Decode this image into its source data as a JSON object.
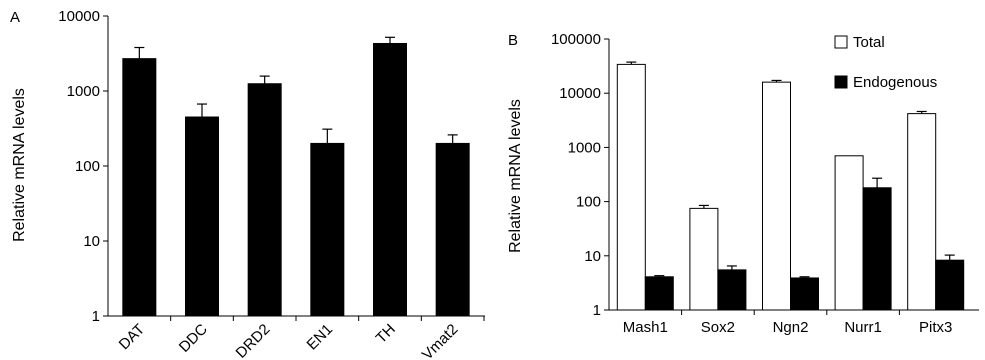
{
  "chart_data": [
    {
      "panel": "A",
      "type": "bar",
      "scale": "log",
      "ylabel": "Relative mRNA levels",
      "ylim": [
        1,
        10000
      ],
      "yticks": [
        "1",
        "10",
        "100",
        "1000",
        "10000"
      ],
      "categories": [
        "DAT",
        "DDC",
        "DRD2",
        "EN1",
        "TH",
        "Vmat2"
      ],
      "series": [
        {
          "color": "#000000",
          "values": [
            2700,
            450,
            1250,
            200,
            4300,
            200
          ],
          "errors": [
            1100,
            220,
            330,
            110,
            900,
            60
          ]
        }
      ]
    },
    {
      "panel": "B",
      "type": "bar",
      "scale": "log",
      "ylabel": "Relative mRNA levels",
      "ylim": [
        1,
        100000
      ],
      "yticks": [
        "1",
        "10",
        "100",
        "1000",
        "10000",
        "100000"
      ],
      "categories": [
        "Mash1",
        "Sox2",
        "Ngn2",
        "Nurr1",
        "Pitx3"
      ],
      "legend": {
        "position": "top-right"
      },
      "series": [
        {
          "name": "Total",
          "color": "#ffffff",
          "values": [
            34000,
            75,
            16000,
            700,
            4200
          ],
          "errors": [
            3500,
            10,
            1200,
            0,
            400
          ]
        },
        {
          "name": "Endogenous",
          "color": "#000000",
          "values": [
            4.1,
            5.5,
            3.9,
            180,
            8.3
          ],
          "errors": [
            0.2,
            1.0,
            0.2,
            90,
            2.0
          ]
        }
      ]
    }
  ]
}
